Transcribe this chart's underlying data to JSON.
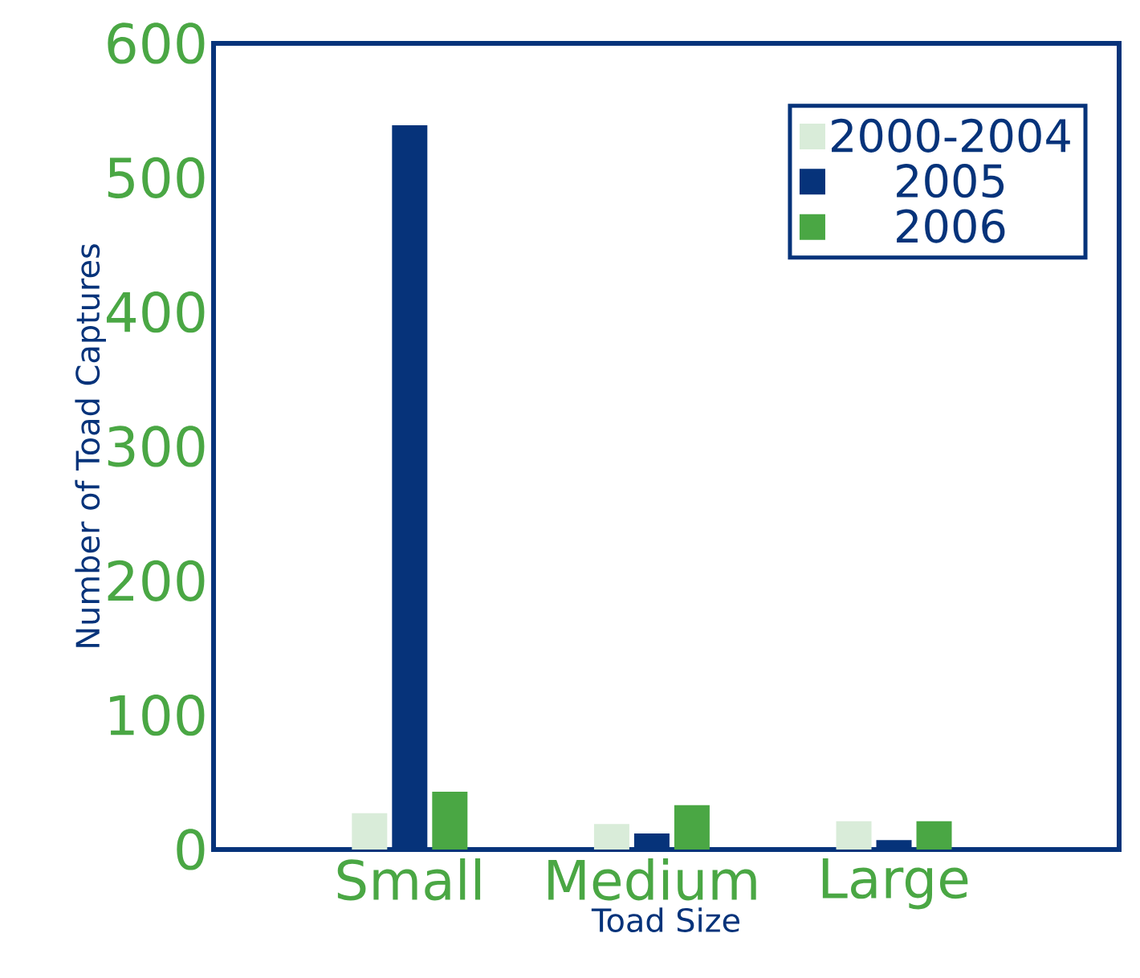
{
  "chart_data": {
    "type": "bar",
    "xlabel": "Toad Size",
    "ylabel": "Number of Toad Captures",
    "categories": [
      "Small",
      "Medium",
      "Large"
    ],
    "series": [
      {
        "name": "2000-2004",
        "color": "#d9ecd9",
        "values": [
          27,
          19,
          21
        ]
      },
      {
        "name": "2005",
        "color": "#06337a",
        "values": [
          539,
          12,
          7
        ]
      },
      {
        "name": "2006",
        "color": "#4aa744",
        "values": [
          43,
          33,
          21
        ]
      }
    ],
    "ylim": [
      0,
      600
    ],
    "yticks": [
      0,
      100,
      200,
      300,
      400,
      500,
      600
    ],
    "legend": "top right",
    "grid": false
  }
}
